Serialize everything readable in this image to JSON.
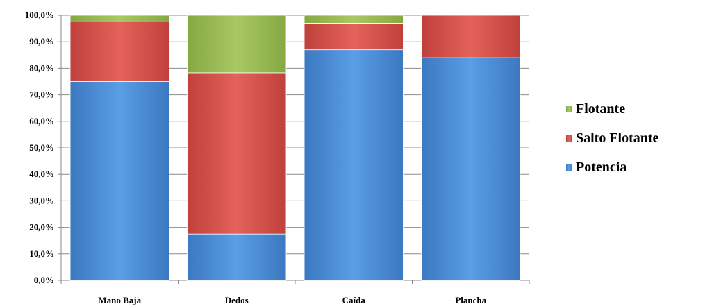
{
  "chart_data": {
    "type": "bar",
    "stacked": true,
    "percent": true,
    "categories": [
      "Mano Baja",
      "Dedos",
      "Caída",
      "Plancha"
    ],
    "series": [
      {
        "name": "Potencia",
        "values": [
          75.0,
          17.5,
          87.0,
          84.0
        ],
        "color": "#4a8fd8"
      },
      {
        "name": "Salto Flotante",
        "values": [
          22.5,
          60.8,
          10.0,
          16.0
        ],
        "color": "#d9534d"
      },
      {
        "name": "Flotante",
        "values": [
          2.5,
          21.7,
          3.0,
          0.0
        ],
        "color": "#9bbb59"
      }
    ],
    "y_ticks": [
      "0,0%",
      "10,0%",
      "20,0%",
      "30,0%",
      "40,0%",
      "50,0%",
      "60,0%",
      "70,0%",
      "80,0%",
      "90,0%",
      "100,0%"
    ],
    "ylim": [
      0,
      100
    ],
    "grid": true,
    "legend_position": "right",
    "legend_order": [
      "Flotante",
      "Salto Flotante",
      "Potencia"
    ]
  }
}
